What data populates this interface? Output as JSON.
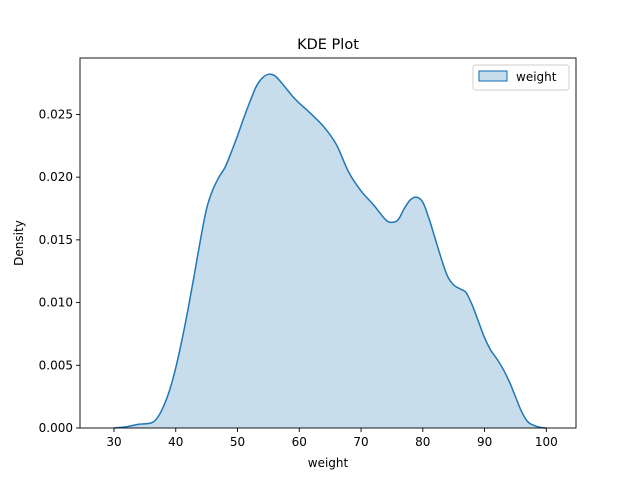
{
  "chart_data": {
    "type": "area",
    "title": "KDE Plot",
    "xlabel": "weight",
    "ylabel": "Density",
    "xlim": [
      24.5,
      104.8
    ],
    "ylim": [
      0,
      0.0295
    ],
    "xticks": [
      30,
      40,
      50,
      60,
      70,
      80,
      90,
      100
    ],
    "xtick_labels": [
      "30",
      "40",
      "50",
      "60",
      "70",
      "80",
      "90",
      "100"
    ],
    "yticks": [
      0,
      0.005,
      0.01,
      0.015,
      0.02,
      0.025
    ],
    "ytick_labels": [
      "0.000",
      "0.005",
      "0.010",
      "0.015",
      "0.020",
      "0.025"
    ],
    "grid": false,
    "legend_position": "upper right",
    "series": [
      {
        "name": "weight",
        "color": "#1f77b4",
        "fill_color": "#1f77b4",
        "fill_opacity": 0.25,
        "x": [
          30,
          32,
          34,
          36,
          37,
          38,
          39,
          40,
          41,
          42,
          43,
          44,
          45,
          46,
          47,
          48,
          49,
          50,
          51,
          52,
          53,
          54,
          55,
          56,
          57,
          58,
          59,
          60,
          62,
          64,
          66,
          68,
          70,
          72,
          74,
          75,
          76,
          77,
          78,
          79,
          80,
          81,
          82,
          83,
          84,
          85,
          86,
          87,
          88,
          89,
          90,
          91,
          92,
          93,
          94,
          95,
          96,
          97,
          98,
          99,
          100
        ],
        "y": [
          0,
          0.0001,
          0.0003,
          0.0004,
          0.0008,
          0.0017,
          0.003,
          0.0048,
          0.007,
          0.0095,
          0.0122,
          0.015,
          0.0175,
          0.019,
          0.02,
          0.0208,
          0.022,
          0.0233,
          0.0247,
          0.026,
          0.0272,
          0.0279,
          0.0282,
          0.0281,
          0.0276,
          0.027,
          0.0264,
          0.0259,
          0.025,
          0.024,
          0.0226,
          0.0204,
          0.0189,
          0.0178,
          0.0166,
          0.0164,
          0.0166,
          0.0175,
          0.0182,
          0.0184,
          0.018,
          0.0167,
          0.0151,
          0.0135,
          0.0121,
          0.0114,
          0.0111,
          0.0108,
          0.0098,
          0.0085,
          0.0072,
          0.0062,
          0.0055,
          0.0047,
          0.0037,
          0.0025,
          0.0013,
          0.0005,
          0.0002,
          5e-05,
          0
        ]
      }
    ]
  }
}
